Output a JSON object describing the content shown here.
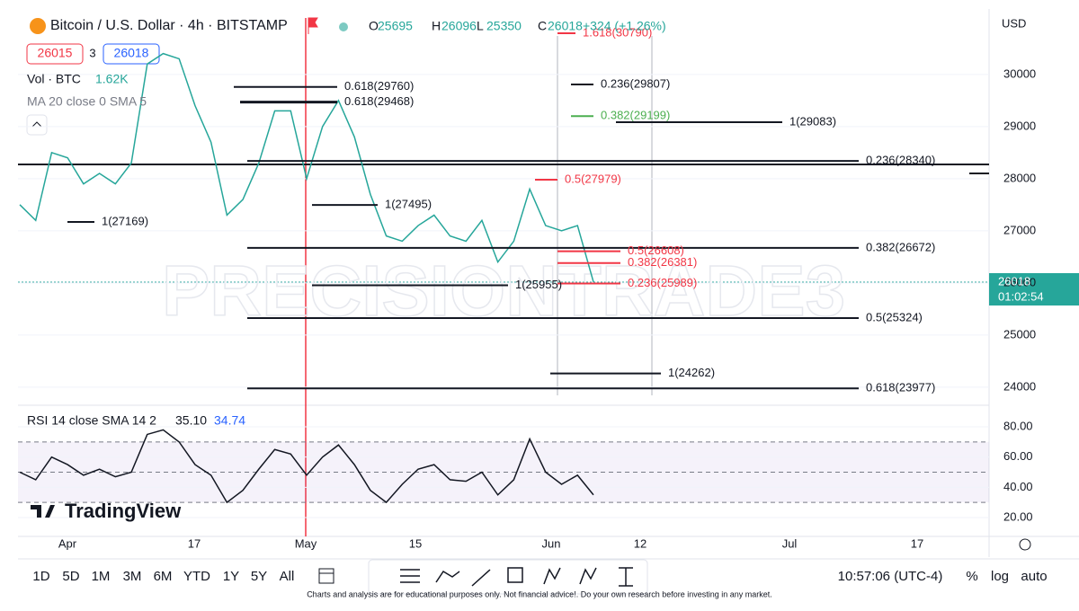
{
  "header": {
    "title": "Bitcoin / U.S. Dollar · 4h · BITSTAMP",
    "ohlc": [
      "O",
      "25695",
      "H",
      "26096",
      "L",
      "25350",
      "C",
      "26018"
    ],
    "change": "+324 (+1.26%)",
    "bid": "26015",
    "spread": "3",
    "ask": "26018",
    "volume_label": "Vol · BTC",
    "volume_value": "1.62K",
    "ma": "MA 20 close 0 SMA 5",
    "currency": "USD",
    "last_price": "26018",
    "countdown": "01:02:54",
    "watermark": "PRECISIONTRADE3",
    "logo": "TradingView"
  },
  "chart_data": [
    {
      "type": "line",
      "color": "#26a69a",
      "categories": [
        null,
        null,
        null,
        null,
        null,
        null,
        null,
        null,
        null,
        null,
        null,
        null,
        null,
        null,
        null,
        null,
        null,
        null,
        null,
        null,
        null,
        null,
        null,
        null,
        null,
        null,
        null,
        null,
        null,
        null,
        null,
        null,
        null,
        null,
        null,
        null,
        null
      ],
      "values": [
        27500,
        27200,
        28500,
        28400,
        27900,
        28100,
        27900,
        28300,
        30200,
        30400,
        30300,
        29400,
        28700,
        27300,
        27600,
        28300,
        29300,
        29300,
        28000,
        29000,
        29500,
        28800,
        27700,
        26900,
        26800,
        27100,
        27300,
        26900,
        26800,
        27200,
        26400,
        26800,
        27800,
        27100,
        27000,
        27100,
        26018
      ],
      "ylim": [
        23670,
        31290
      ],
      "yticks": [
        24000,
        25000,
        26000,
        27000,
        28000,
        29000,
        30000
      ],
      "grid": true
    },
    {
      "type": "line",
      "title": "RSI 14 close SMA 14 2",
      "readouts": [
        "35.10",
        "34.74"
      ],
      "color": "#131722",
      "categories": [
        null,
        null,
        null,
        null,
        null,
        null,
        null,
        null,
        null,
        null,
        null,
        null,
        null,
        null,
        null,
        null,
        null,
        null,
        null,
        null,
        null,
        null,
        null,
        null,
        null,
        null,
        null,
        null,
        null,
        null,
        null,
        null,
        null,
        null,
        null,
        null,
        null
      ],
      "values": [
        50,
        45,
        60,
        55,
        48,
        52,
        47,
        50,
        75,
        78,
        70,
        55,
        48,
        30,
        38,
        52,
        65,
        62,
        48,
        60,
        68,
        55,
        38,
        30,
        42,
        52,
        55,
        45,
        44,
        50,
        35,
        45,
        72,
        50,
        42,
        48,
        35
      ],
      "ylim": [
        8.7,
        91.9
      ],
      "bands": [
        70,
        50,
        30
      ],
      "yticks": [
        {
          "value": 80,
          "label": "80.00"
        },
        {
          "value": 60,
          "label": "60.00"
        },
        {
          "value": 40,
          "label": "40.00"
        },
        {
          "value": 20,
          "label": "20.00"
        }
      ]
    }
  ],
  "annotations": [
    {
      "label": "1.618(30790)",
      "price": 30790,
      "color": "#f23645"
    },
    {
      "label": "0.618(29760)",
      "price": 29760,
      "color": "#131722"
    },
    {
      "label": "0.618(29468)",
      "price": 29468,
      "color": "#131722"
    },
    {
      "label": "0.236(29807)",
      "price": 29807,
      "color": "#131722"
    },
    {
      "label": "0.382(29199)",
      "price": 29199,
      "color": "#4caf50"
    },
    {
      "label": "1(29083)",
      "price": 29083,
      "color": "#131722"
    },
    {
      "label": "0.236(28340)",
      "price": 28340,
      "color": "#131722"
    },
    {
      "label": "0.5(27979)",
      "price": 27979,
      "color": "#f23645"
    },
    {
      "label": "1(27495)",
      "price": 27495,
      "color": "#131722"
    },
    {
      "label": "1(27169)",
      "price": 27169,
      "color": "#131722"
    },
    {
      "label": "0.382(26672)",
      "price": 26672,
      "color": "#131722"
    },
    {
      "label": "0.5(26608)",
      "price": 26608,
      "color": "#f23645"
    },
    {
      "label": "0.382(26381)",
      "price": 26381,
      "color": "#f23645"
    },
    {
      "label": "0.236(25989)",
      "price": 25989,
      "color": "#f23645"
    },
    {
      "label": "1(25955)",
      "price": 25955,
      "color": "#131722"
    },
    {
      "label": "0.5(25324)",
      "price": 25324,
      "color": "#131722"
    },
    {
      "label": "1(24262)",
      "price": 24262,
      "color": "#131722"
    },
    {
      "label": "0.618(23977)",
      "price": 23977,
      "color": "#131722"
    }
  ],
  "time_axis": [
    "Apr",
    "17",
    "May",
    "15",
    "Jun",
    "12",
    "Jul",
    "17"
  ],
  "toolbar": {
    "ranges": [
      "1D",
      "5D",
      "1M",
      "3M",
      "6M",
      "YTD",
      "1Y",
      "5Y",
      "All"
    ],
    "clock": "10:57:06 (UTC-4)",
    "options": [
      "%",
      "log",
      "auto"
    ]
  },
  "disclaimer": "Charts and analysis are for educational purposes only. Not financial advice!. Do your own research before investing in any market."
}
